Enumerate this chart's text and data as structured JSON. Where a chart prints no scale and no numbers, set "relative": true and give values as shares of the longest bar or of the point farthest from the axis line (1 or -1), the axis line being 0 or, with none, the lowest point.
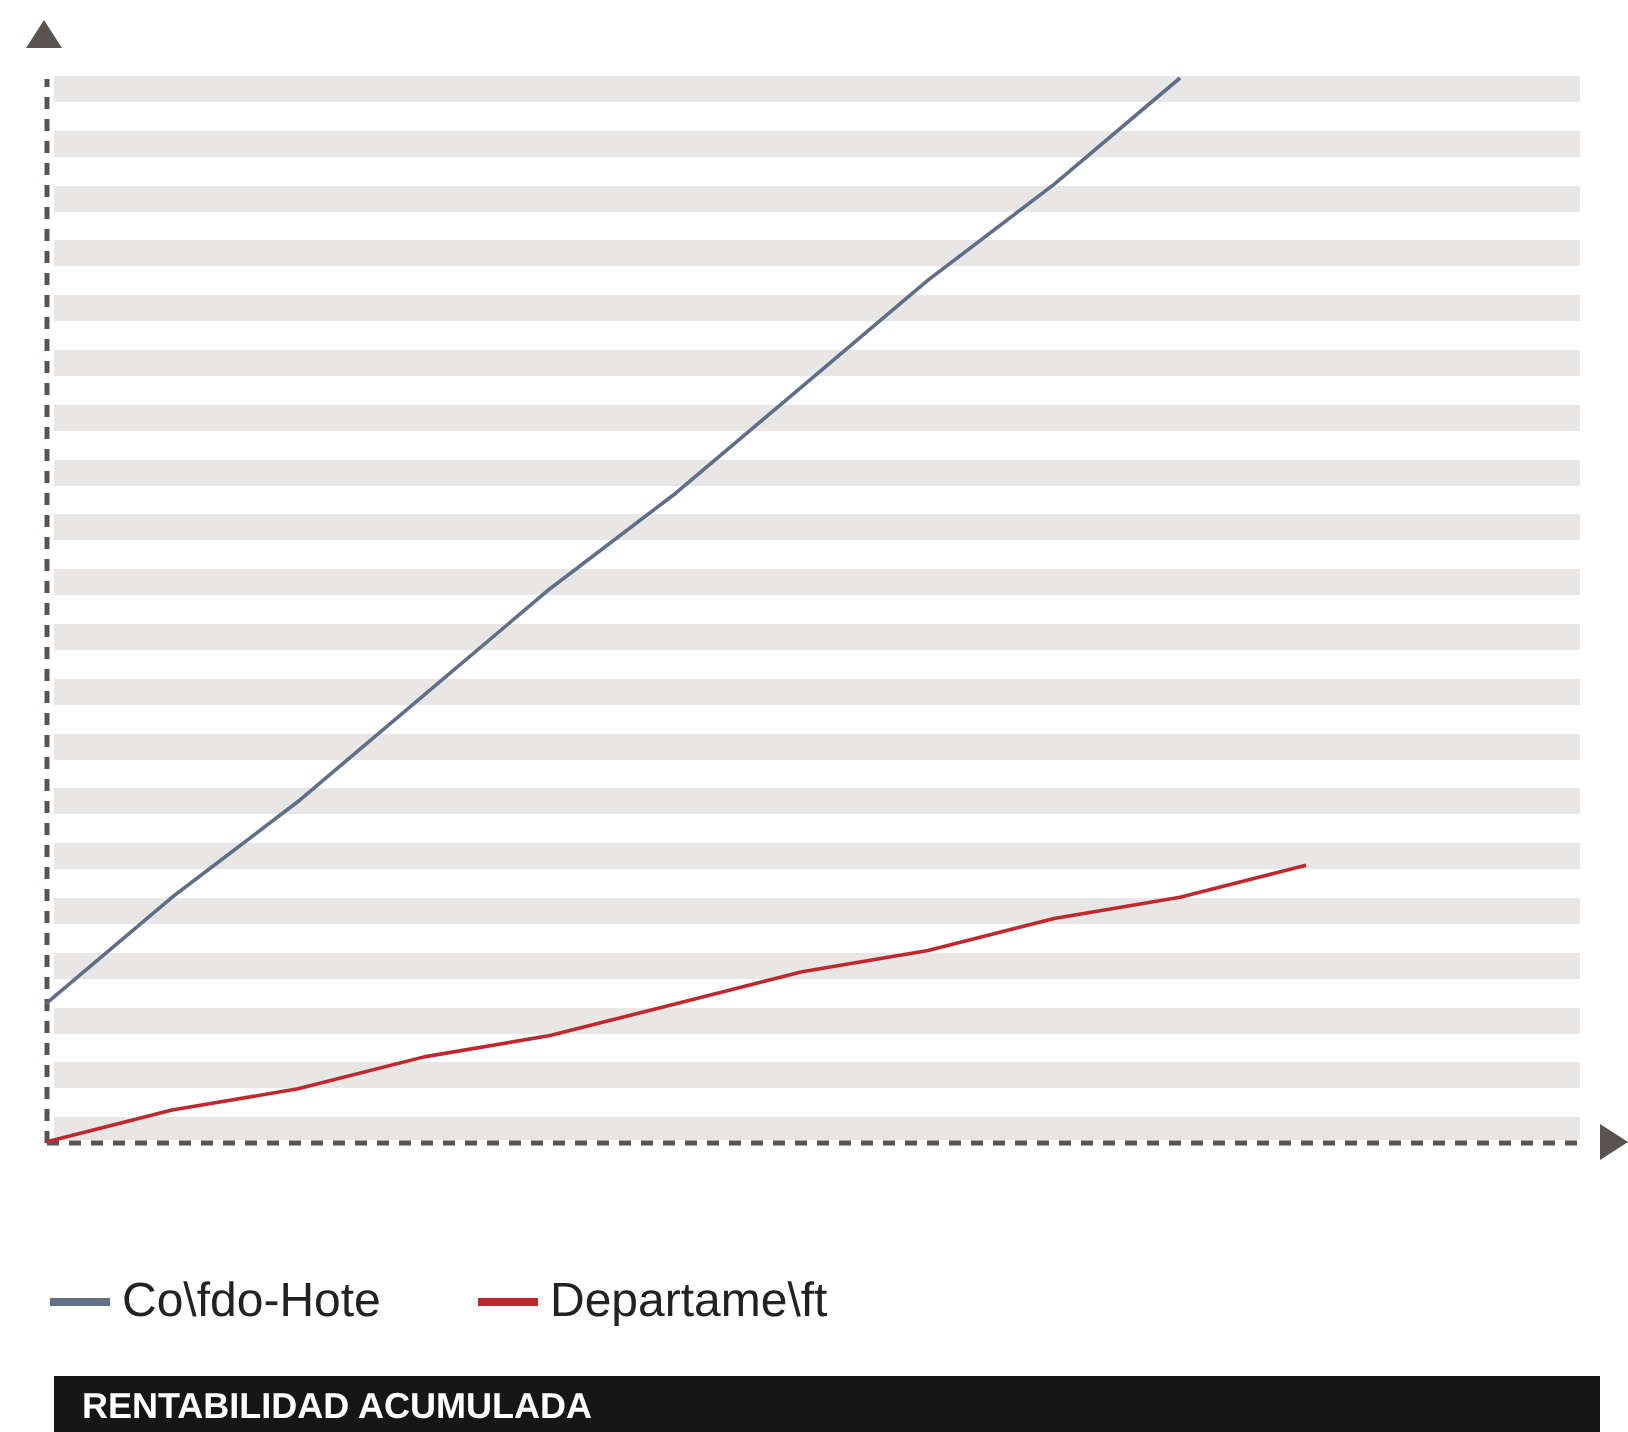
{
  "chart_data": {
    "type": "line",
    "title": "RENTABILIDAD ACUMULADA",
    "relative": true,
    "legend": "bottom",
    "categories": [
      null,
      null,
      null,
      null,
      null,
      null,
      null,
      null,
      null,
      null,
      null
    ],
    "series": [
      {
        "name": "Co\\fdo-Hote",
        "color": "#5f6f87",
        "values": [
          0.13,
          0.23,
          0.32,
          0.42,
          0.52,
          0.61,
          0.71,
          0.81,
          0.9,
          1.0,
          null
        ]
      },
      {
        "name": "Departame\\ft",
        "color": "#c0282d",
        "values": [
          0,
          0.03,
          0.05,
          0.08,
          0.1,
          0.13,
          0.16,
          0.18,
          0.21,
          0.23,
          0.26
        ]
      }
    ]
  }
}
